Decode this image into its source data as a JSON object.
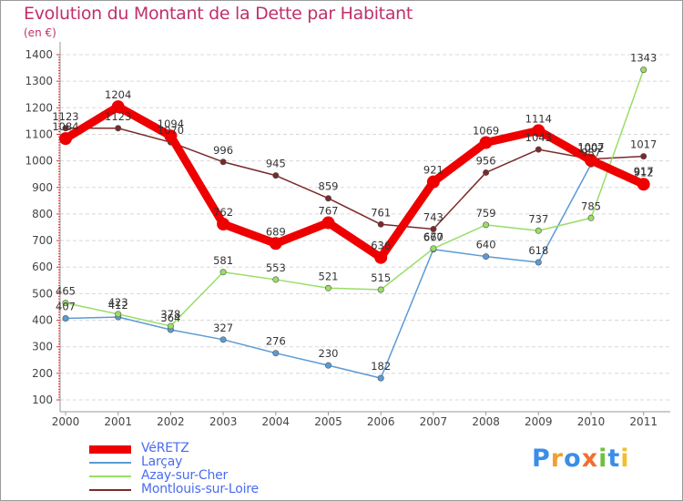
{
  "title": "Evolution du Montant de la Dette par Habitant",
  "subtitle": "(en €)",
  "logo": {
    "text": "Proxiti",
    "letters": [
      {
        "ch": "P",
        "color": "#3a8ee8"
      },
      {
        "ch": "r",
        "color": "#f0a030"
      },
      {
        "ch": "o",
        "color": "#3a8ee8"
      },
      {
        "ch": "x",
        "color": "#f07030"
      },
      {
        "ch": "i",
        "color": "#70c040"
      },
      {
        "ch": "t",
        "color": "#3a8ee8"
      },
      {
        "ch": "i",
        "color": "#f0c030"
      }
    ]
  },
  "chart_data": {
    "type": "line",
    "title": "Evolution du Montant de la Dette par Habitant",
    "subtitle": "(en €)",
    "xlabel": "",
    "ylabel": "",
    "categories": [
      "2000",
      "2001",
      "2002",
      "2003",
      "2004",
      "2005",
      "2006",
      "2007",
      "2008",
      "2009",
      "2010",
      "2011"
    ],
    "y_ticks": [
      "100",
      "200",
      "300",
      "400",
      "500",
      "600",
      "700",
      "800",
      "900",
      "1000",
      "1100",
      "1200",
      "1300",
      "1400"
    ],
    "ylim": [
      100,
      1400
    ],
    "grid": "horizontal dashed",
    "legend_position": "bottom-left",
    "series": [
      {
        "name": "VéRETZ",
        "color": "#ee0000",
        "width": 9,
        "values": [
          1084,
          1204,
          1094,
          762,
          689,
          767,
          636,
          921,
          1069,
          1114,
          1002,
          912
        ],
        "labels": [
          "1084",
          "1204",
          "1094",
          "762",
          "689",
          "767",
          "636",
          "921",
          "1069",
          "1114",
          "1002",
          "912"
        ]
      },
      {
        "name": "Larçay",
        "color": "#5b9bd5",
        "width": 1.5,
        "values": [
          407,
          412,
          364,
          327,
          276,
          230,
          182,
          667,
          640,
          618,
          987,
          917
        ],
        "labels": [
          "407",
          "412",
          "364",
          "327",
          "276",
          "230",
          "182",
          "667",
          "640",
          "618",
          "987",
          "917"
        ]
      },
      {
        "name": "Azay-sur-Cher",
        "color": "#99dd66",
        "width": 1.5,
        "values": [
          465,
          423,
          378,
          581,
          553,
          521,
          515,
          670,
          759,
          737,
          785,
          1343
        ],
        "labels": [
          "465",
          "423",
          "378",
          "581",
          "553",
          "521",
          "515",
          "670",
          "759",
          "737",
          "785",
          "1343"
        ]
      },
      {
        "name": "Montlouis-sur-Loire",
        "color": "#7a2a2a",
        "width": 1.5,
        "values": [
          1123,
          1123,
          1070,
          996,
          945,
          859,
          761,
          743,
          956,
          1043,
          1007,
          1017
        ],
        "labels": [
          "1123",
          "1123",
          "1070",
          "996",
          "945",
          "859",
          "761",
          "743",
          "956",
          "1043",
          "1007",
          "1017"
        ]
      }
    ]
  }
}
